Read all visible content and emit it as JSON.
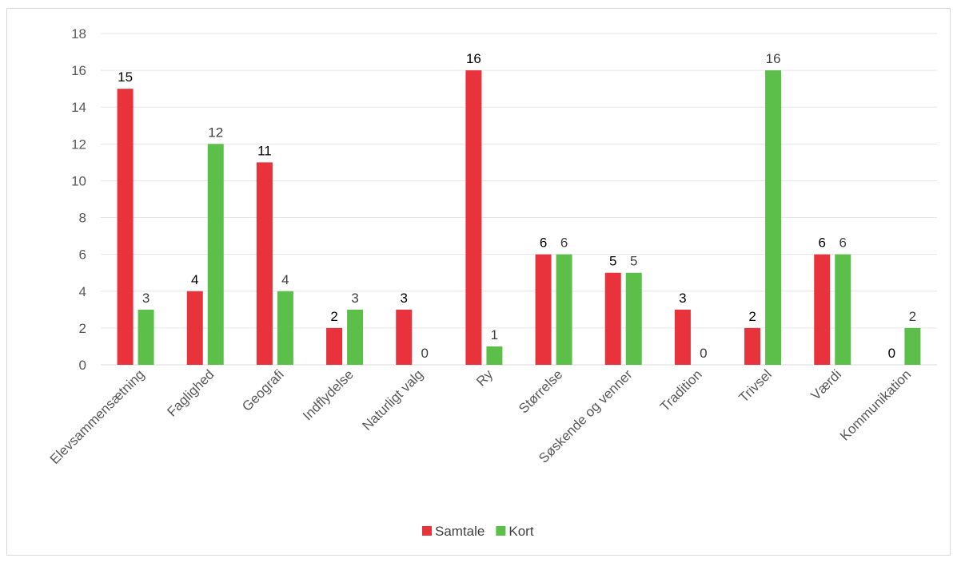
{
  "chart_data": {
    "type": "bar",
    "categories": [
      "Elevsammensætning",
      "Faglighed",
      "Geografi",
      "Indflydelse",
      "Naturligt valg",
      "Ry",
      "Størrelse",
      "Søskende og venner",
      "Tradition",
      "Trivsel",
      "Værdi",
      "Kommunikation"
    ],
    "series": [
      {
        "name": "Samtale",
        "color": "#E8323C",
        "values": [
          15,
          4,
          11,
          2,
          3,
          16,
          6,
          5,
          3,
          2,
          6,
          0
        ]
      },
      {
        "name": "Kort",
        "color": "#5CBF4A",
        "values": [
          3,
          12,
          4,
          3,
          0,
          1,
          6,
          5,
          0,
          16,
          6,
          2
        ]
      }
    ],
    "yticks": [
      0,
      2,
      4,
      6,
      8,
      10,
      12,
      14,
      16,
      18
    ],
    "ylim": [
      0,
      18
    ],
    "grid": true,
    "legend": "bottom",
    "title": "",
    "xlabel": "",
    "ylabel": ""
  }
}
